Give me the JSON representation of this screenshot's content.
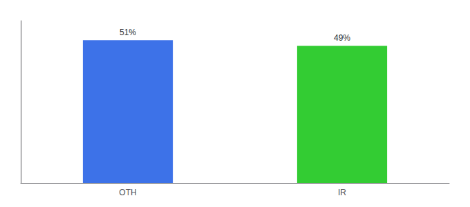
{
  "chart_data": {
    "type": "bar",
    "categories": [
      "OTH",
      "IR"
    ],
    "values": [
      51,
      49
    ],
    "value_labels": [
      "51%",
      "49%"
    ],
    "colors": [
      "#3d72e8",
      "#33cc33"
    ],
    "ylim": [
      0,
      58
    ],
    "grid": false,
    "data_labels": true,
    "tick_labels": "x"
  }
}
